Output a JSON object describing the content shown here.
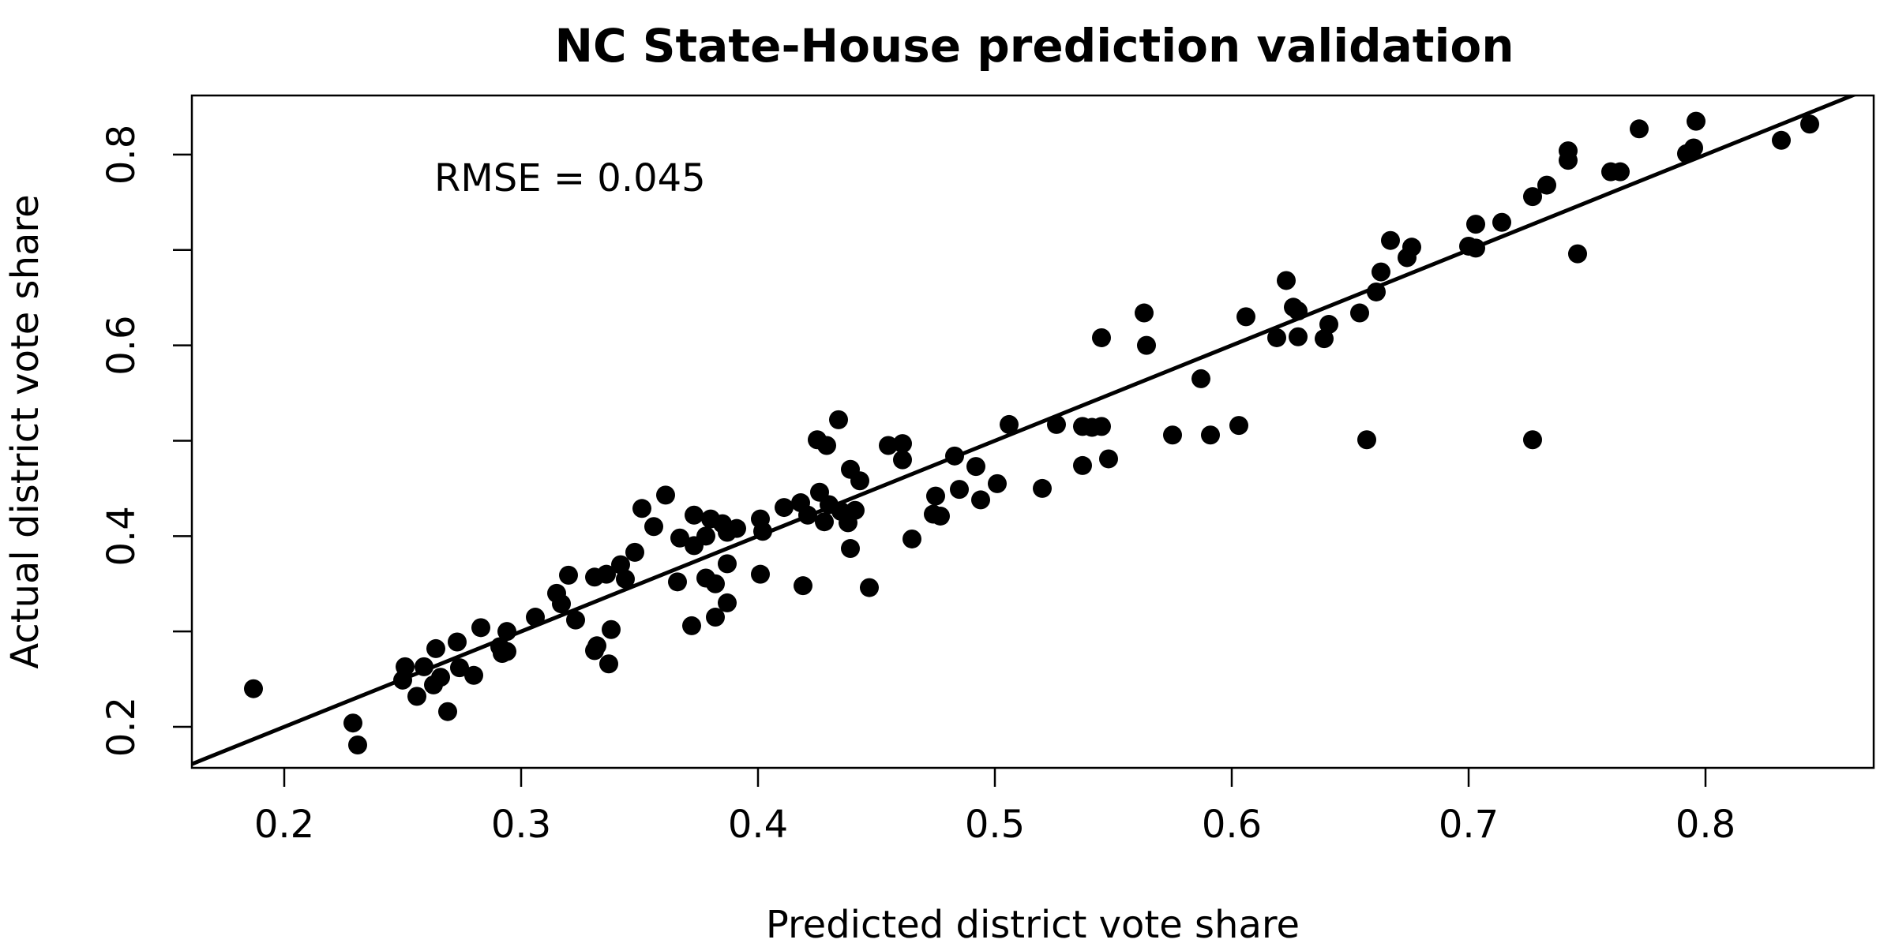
{
  "chart_data": {
    "type": "scatter",
    "title": "NC State-House prediction validation",
    "xlabel": "Predicted district vote share",
    "ylabel": "Actual district vote share",
    "xlim": [
      0.161,
      0.871
    ],
    "ylim": [
      0.157,
      0.862
    ],
    "xticks": [
      "0.2",
      "0.3",
      "0.4",
      "0.5",
      "0.6",
      "0.7",
      "0.8"
    ],
    "yticks": [
      "0.2",
      "0.4",
      "0.6",
      "0.8"
    ],
    "annotation": "RMSE = 0.045",
    "grid": false,
    "reference_line": {
      "intercept": 0.0,
      "slope": 1.0,
      "color": "#000000"
    },
    "marker_color": "#000000",
    "points": [
      [
        0.187,
        0.24
      ],
      [
        0.229,
        0.204
      ],
      [
        0.231,
        0.181
      ],
      [
        0.25,
        0.249
      ],
      [
        0.251,
        0.263
      ],
      [
        0.256,
        0.232
      ],
      [
        0.259,
        0.263
      ],
      [
        0.263,
        0.244
      ],
      [
        0.264,
        0.282
      ],
      [
        0.266,
        0.252
      ],
      [
        0.269,
        0.216
      ],
      [
        0.273,
        0.289
      ],
      [
        0.274,
        0.262
      ],
      [
        0.28,
        0.254
      ],
      [
        0.283,
        0.304
      ],
      [
        0.291,
        0.284
      ],
      [
        0.292,
        0.277
      ],
      [
        0.294,
        0.279
      ],
      [
        0.294,
        0.3
      ],
      [
        0.306,
        0.315
      ],
      [
        0.315,
        0.34
      ],
      [
        0.317,
        0.329
      ],
      [
        0.32,
        0.359
      ],
      [
        0.323,
        0.312
      ],
      [
        0.331,
        0.28
      ],
      [
        0.331,
        0.357
      ],
      [
        0.332,
        0.285
      ],
      [
        0.336,
        0.36
      ],
      [
        0.337,
        0.266
      ],
      [
        0.338,
        0.302
      ],
      [
        0.342,
        0.37
      ],
      [
        0.344,
        0.355
      ],
      [
        0.348,
        0.383
      ],
      [
        0.351,
        0.429
      ],
      [
        0.356,
        0.41
      ],
      [
        0.361,
        0.443
      ],
      [
        0.366,
        0.352
      ],
      [
        0.367,
        0.398
      ],
      [
        0.372,
        0.306
      ],
      [
        0.373,
        0.39
      ],
      [
        0.373,
        0.422
      ],
      [
        0.378,
        0.356
      ],
      [
        0.378,
        0.4
      ],
      [
        0.38,
        0.418
      ],
      [
        0.382,
        0.315
      ],
      [
        0.382,
        0.35
      ],
      [
        0.385,
        0.413
      ],
      [
        0.387,
        0.33
      ],
      [
        0.387,
        0.371
      ],
      [
        0.387,
        0.404
      ],
      [
        0.391,
        0.408
      ],
      [
        0.401,
        0.36
      ],
      [
        0.401,
        0.418
      ],
      [
        0.402,
        0.405
      ],
      [
        0.411,
        0.43
      ],
      [
        0.418,
        0.435
      ],
      [
        0.419,
        0.348
      ],
      [
        0.421,
        0.422
      ],
      [
        0.425,
        0.501
      ],
      [
        0.426,
        0.446
      ],
      [
        0.428,
        0.415
      ],
      [
        0.429,
        0.495
      ],
      [
        0.43,
        0.433
      ],
      [
        0.434,
        0.522
      ],
      [
        0.435,
        0.426
      ],
      [
        0.438,
        0.414
      ],
      [
        0.439,
        0.387
      ],
      [
        0.439,
        0.47
      ],
      [
        0.441,
        0.427
      ],
      [
        0.443,
        0.458
      ],
      [
        0.447,
        0.346
      ],
      [
        0.455,
        0.495
      ],
      [
        0.461,
        0.497
      ],
      [
        0.461,
        0.48
      ],
      [
        0.465,
        0.397
      ],
      [
        0.474,
        0.423
      ],
      [
        0.475,
        0.442
      ],
      [
        0.477,
        0.421
      ],
      [
        0.483,
        0.484
      ],
      [
        0.485,
        0.449
      ],
      [
        0.492,
        0.473
      ],
      [
        0.494,
        0.438
      ],
      [
        0.501,
        0.455
      ],
      [
        0.506,
        0.517
      ],
      [
        0.52,
        0.45
      ],
      [
        0.526,
        0.517
      ],
      [
        0.537,
        0.474
      ],
      [
        0.537,
        0.515
      ],
      [
        0.541,
        0.514
      ],
      [
        0.545,
        0.515
      ],
      [
        0.545,
        0.608
      ],
      [
        0.548,
        0.481
      ],
      [
        0.563,
        0.634
      ],
      [
        0.564,
        0.6
      ],
      [
        0.575,
        0.506
      ],
      [
        0.587,
        0.565
      ],
      [
        0.591,
        0.506
      ],
      [
        0.603,
        0.516
      ],
      [
        0.606,
        0.63
      ],
      [
        0.619,
        0.608
      ],
      [
        0.623,
        0.668
      ],
      [
        0.626,
        0.64
      ],
      [
        0.628,
        0.609
      ],
      [
        0.628,
        0.636
      ],
      [
        0.639,
        0.607
      ],
      [
        0.641,
        0.622
      ],
      [
        0.654,
        0.634
      ],
      [
        0.657,
        0.501
      ],
      [
        0.661,
        0.656
      ],
      [
        0.663,
        0.677
      ],
      [
        0.667,
        0.71
      ],
      [
        0.674,
        0.692
      ],
      [
        0.676,
        0.703
      ],
      [
        0.7,
        0.704
      ],
      [
        0.703,
        0.727
      ],
      [
        0.703,
        0.702
      ],
      [
        0.714,
        0.729
      ],
      [
        0.727,
        0.501
      ],
      [
        0.727,
        0.756
      ],
      [
        0.733,
        0.768
      ],
      [
        0.742,
        0.794
      ],
      [
        0.742,
        0.804
      ],
      [
        0.746,
        0.696
      ],
      [
        0.76,
        0.782
      ],
      [
        0.764,
        0.782
      ],
      [
        0.772,
        0.827
      ],
      [
        0.792,
        0.801
      ],
      [
        0.795,
        0.807
      ],
      [
        0.796,
        0.835
      ],
      [
        0.832,
        0.815
      ],
      [
        0.844,
        0.832
      ]
    ]
  }
}
